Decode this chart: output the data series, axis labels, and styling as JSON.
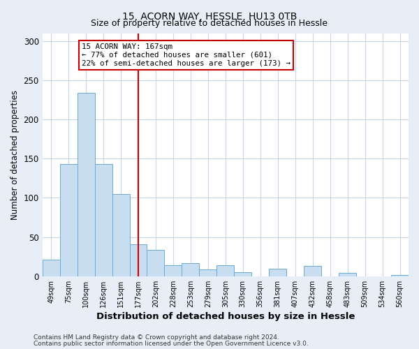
{
  "title": "15, ACORN WAY, HESSLE, HU13 0TB",
  "subtitle": "Size of property relative to detached houses in Hessle",
  "xlabel": "Distribution of detached houses by size in Hessle",
  "ylabel": "Number of detached properties",
  "categories": [
    "49sqm",
    "75sqm",
    "100sqm",
    "126sqm",
    "151sqm",
    "177sqm",
    "202sqm",
    "228sqm",
    "253sqm",
    "279sqm",
    "305sqm",
    "330sqm",
    "356sqm",
    "381sqm",
    "407sqm",
    "432sqm",
    "458sqm",
    "483sqm",
    "509sqm",
    "534sqm",
    "560sqm"
  ],
  "values": [
    21,
    143,
    234,
    143,
    105,
    41,
    34,
    14,
    17,
    9,
    14,
    5,
    0,
    10,
    0,
    13,
    0,
    4,
    0,
    0,
    2
  ],
  "bar_color": "#c9ddf0",
  "bar_edge_color": "#6aaad4",
  "vline_x_index": 5,
  "vline_color": "#cc0000",
  "annotation_text": "15 ACORN WAY: 167sqm\n← 77% of detached houses are smaller (601)\n22% of semi-detached houses are larger (173) →",
  "annotation_box_color": "#ffffff",
  "annotation_box_edge_color": "#cc0000",
  "ylim": [
    0,
    310
  ],
  "yticks": [
    0,
    50,
    100,
    150,
    200,
    250,
    300
  ],
  "footer_line1": "Contains HM Land Registry data © Crown copyright and database right 2024.",
  "footer_line2": "Contains public sector information licensed under the Open Government Licence v3.0.",
  "bg_color": "#e8eef8",
  "plot_bg_color": "#ffffff",
  "grid_color": "#c8d4e8"
}
